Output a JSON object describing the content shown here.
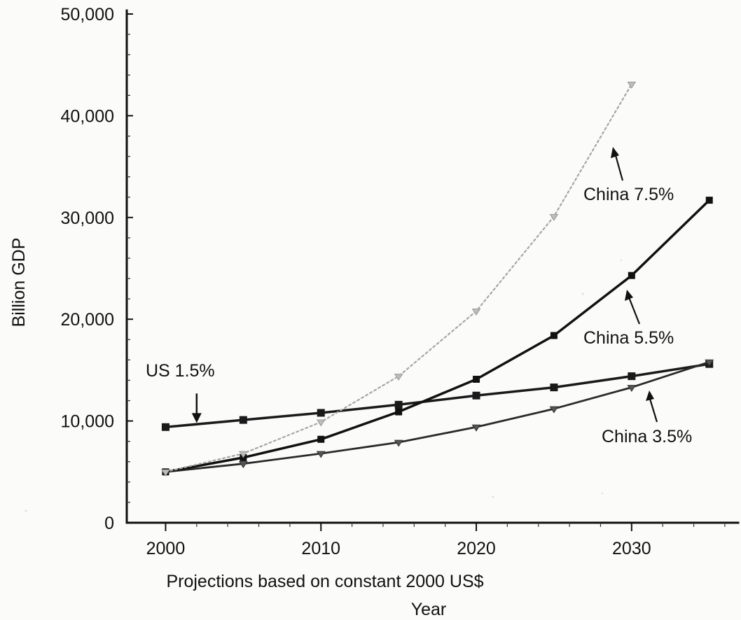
{
  "chart_data": {
    "type": "line",
    "title": "",
    "xlabel": "Year",
    "xlabel_note": "Projections based on constant 2000 US$",
    "ylabel": "Billion GDP",
    "xlim": [
      1997.5,
      2036.5
    ],
    "ylim": [
      0,
      50000
    ],
    "x_ticks": [
      2000,
      2010,
      2020,
      2030
    ],
    "x_tick_labels": [
      "2000",
      "2010",
      "2020",
      "2030"
    ],
    "y_ticks": [
      0,
      10000,
      20000,
      30000,
      40000,
      50000
    ],
    "y_tick_labels": [
      "0",
      "10,000",
      "20,000",
      "30,000",
      "40,000",
      "50,000"
    ],
    "grid": false,
    "legend": "none",
    "series": [
      {
        "name": "US 1.5%",
        "x": [
          2000,
          2005,
          2010,
          2015,
          2020,
          2025,
          2030,
          2035
        ],
        "values": [
          9400,
          10100,
          10800,
          11600,
          12500,
          13300,
          14400,
          15600
        ],
        "color": "#1a1a1a",
        "style": "solid-bold",
        "marker": "square"
      },
      {
        "name": "China 3.5%",
        "x": [
          2000,
          2005,
          2010,
          2015,
          2020,
          2025,
          2030,
          2035
        ],
        "values": [
          5000,
          5800,
          6800,
          7900,
          9400,
          11200,
          13300,
          15800
        ],
        "color": "#2a2a2a",
        "style": "solid",
        "marker": "triangle"
      },
      {
        "name": "China 5.5%",
        "x": [
          2000,
          2005,
          2010,
          2015,
          2020,
          2025,
          2030,
          2035
        ],
        "values": [
          5000,
          6400,
          8200,
          10900,
          14100,
          18400,
          24300,
          31700
        ],
        "color": "#111111",
        "style": "solid-bold",
        "marker": "square"
      },
      {
        "name": "China 7.5%",
        "x": [
          2000,
          2005,
          2010,
          2015,
          2020,
          2025,
          2030
        ],
        "values": [
          5000,
          6800,
          9900,
          14400,
          20800,
          30100,
          43100
        ],
        "color": "#a6a6a6",
        "style": "dotted",
        "marker": "triangle"
      }
    ],
    "annotations": [
      {
        "text": "US 1.5%",
        "series": "US 1.5%",
        "at": [
          2002,
          9400
        ],
        "arrow": "down"
      },
      {
        "text": "China 7.5%",
        "series": "China 7.5%",
        "at": [
          2028.5,
          36600
        ],
        "arrow": "up"
      },
      {
        "text": "China 5.5%",
        "series": "China 5.5%",
        "at": [
          2029.7,
          22500
        ],
        "arrow": "up"
      },
      {
        "text": "China 3.5%",
        "series": "China 3.5%",
        "at": [
          2031,
          12600
        ],
        "arrow": "up"
      }
    ]
  }
}
